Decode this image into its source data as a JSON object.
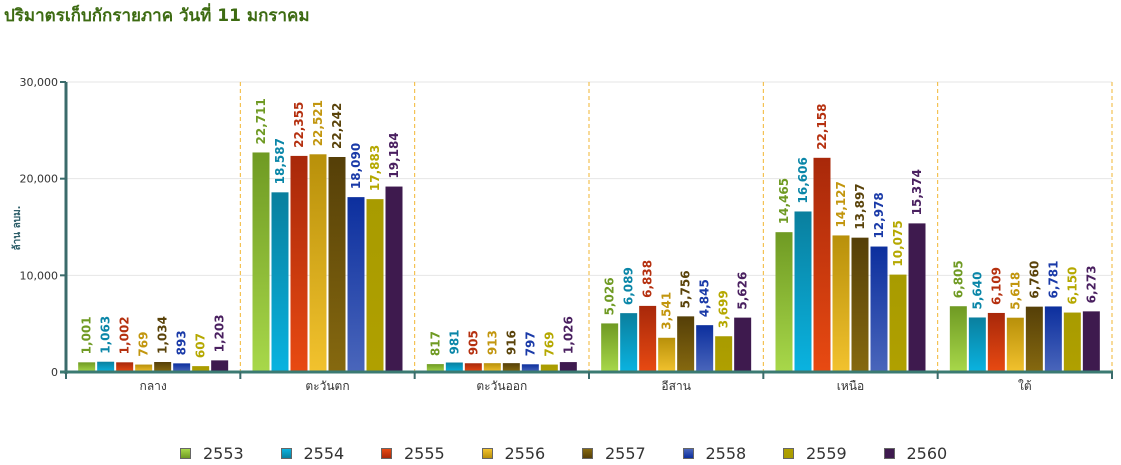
{
  "header": {
    "title": "ปริมาตรเก็บกักรายภาค วันที่ 11 มกราคม"
  },
  "chart_data": {
    "type": "bar",
    "title": "ปริมาตรเก็บกักรายภาค วันที่ 11 มกราคม",
    "xlabel": "",
    "ylabel": "ล้าน ลบม.",
    "ylim": [
      0,
      30000
    ],
    "yticks": [
      0,
      10000,
      20000,
      30000
    ],
    "ytick_labels": [
      "0",
      "10,000",
      "20,000",
      "30,000"
    ],
    "grid": true,
    "legend_position": "bottom",
    "categories": [
      "กลาง",
      "ตะวันตก",
      "ตะวันออก",
      "อีสาน",
      "เหนือ",
      "ใต้"
    ],
    "series": [
      {
        "name": "2553",
        "color": "#6f9a23",
        "light": "#a8d84a",
        "label_color": "#6f9a23",
        "values": [
          1001,
          22711,
          817,
          5026,
          14465,
          6805
        ]
      },
      {
        "name": "2554",
        "color": "#0a7f9e",
        "light": "#0ab3e0",
        "label_color": "#0a86a8",
        "values": [
          1063,
          18587,
          981,
          6089,
          16606,
          5640
        ]
      },
      {
        "name": "2555",
        "color": "#a8280a",
        "light": "#e84a12",
        "label_color": "#b5300f",
        "values": [
          1002,
          22355,
          905,
          6838,
          22158,
          6109
        ]
      },
      {
        "name": "2556",
        "color": "#b8900a",
        "light": "#f2c22e",
        "label_color": "#c2960e",
        "values": [
          769,
          22521,
          913,
          3541,
          14127,
          5618
        ]
      },
      {
        "name": "2557",
        "color": "#553f08",
        "light": "#86690f",
        "label_color": "#5a430a",
        "values": [
          1034,
          22242,
          916,
          5756,
          13897,
          6760
        ]
      },
      {
        "name": "2558",
        "color": "#0c2f9e",
        "light": "#4a66bb",
        "label_color": "#1a3aa8",
        "values": [
          893,
          18090,
          797,
          4845,
          12978,
          6781
        ]
      },
      {
        "name": "2559",
        "color": "#a89b00",
        "light": "#b0a000",
        "label_color": "#b5a800",
        "values": [
          607,
          17883,
          769,
          3699,
          10075,
          6150
        ]
      },
      {
        "name": "2560",
        "color": "#3e1a4e",
        "light": "#3e1a4e",
        "label_color": "#4a2060",
        "values": [
          1203,
          19184,
          1026,
          5626,
          15374,
          6273
        ]
      }
    ]
  }
}
